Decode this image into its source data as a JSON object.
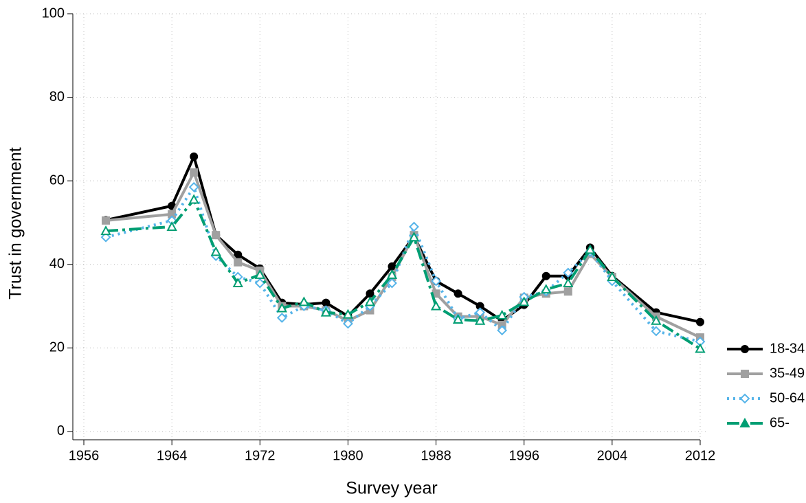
{
  "chart_data": {
    "type": "line",
    "xlabel": "Survey year",
    "ylabel": "Trust in government",
    "x": [
      1958,
      1964,
      1966,
      1968,
      1970,
      1972,
      1974,
      1976,
      1978,
      1980,
      1982,
      1984,
      1986,
      1988,
      1990,
      1992,
      1994,
      1996,
      1998,
      2000,
      2002,
      2004,
      2008,
      2012
    ],
    "series": [
      {
        "name": "18-34",
        "color": "#000000",
        "marker": "circle",
        "dash": "solid",
        "values": [
          50.6,
          54,
          65.8,
          47,
          42.3,
          39,
          30.8,
          30.4,
          30.8,
          27.6,
          33,
          39.5,
          46.7,
          36,
          33,
          30,
          26.5,
          30.3,
          37.2,
          37.2,
          44,
          37.2,
          28.5,
          26.2
        ]
      },
      {
        "name": "35-49",
        "color": "#a0a0a0",
        "marker": "square",
        "dash": "solid",
        "values": [
          50.5,
          52,
          62,
          47,
          40.5,
          38.5,
          30,
          30,
          29,
          26.5,
          29,
          37,
          47,
          33,
          27.5,
          27.5,
          25.5,
          32,
          33,
          33.5,
          42.5,
          37,
          27.5,
          22.5
        ]
      },
      {
        "name": "50-64",
        "color": "#56b4e9",
        "marker": "diamond",
        "dash": "dot",
        "values": [
          46.5,
          50.5,
          58.5,
          42,
          37,
          35.5,
          27.2,
          30,
          29,
          25.8,
          30,
          35.5,
          49,
          36,
          27,
          28.5,
          24.2,
          32.2,
          33.5,
          38,
          43,
          36,
          24,
          21.5
        ]
      },
      {
        "name": "65-",
        "color": "#009e73",
        "marker": "triangle",
        "dash": "dashdot",
        "values": [
          48,
          49,
          55.5,
          43,
          35.5,
          37.5,
          29.5,
          31,
          28.5,
          28,
          31,
          37.5,
          46.5,
          30,
          26.8,
          26.5,
          27.8,
          31,
          34,
          35.5,
          43.5,
          37,
          26.5,
          19.8
        ]
      }
    ],
    "xlim": [
      1955,
      2013
    ],
    "xticks": [
      1956,
      1964,
      1972,
      1980,
      1988,
      1996,
      2004,
      2012
    ],
    "ylim": [
      -2,
      100
    ],
    "yticks": [
      0,
      20,
      40,
      60,
      80,
      100
    ],
    "grid": true,
    "legend": "right"
  }
}
